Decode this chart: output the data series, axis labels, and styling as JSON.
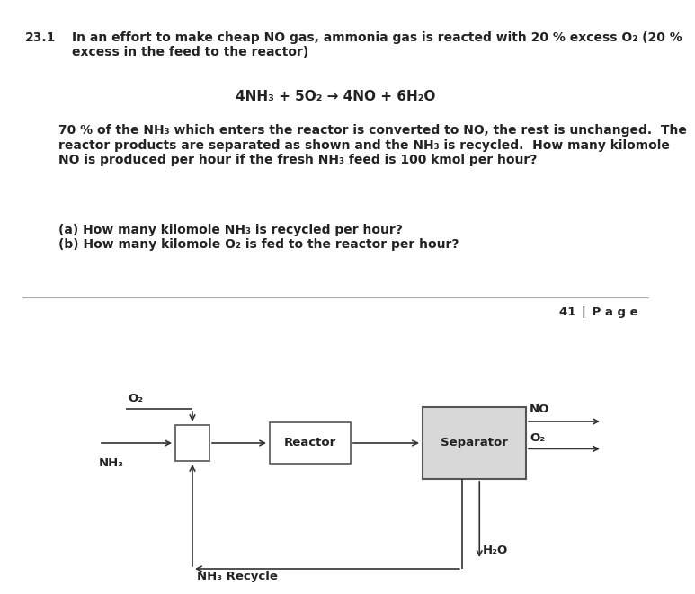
{
  "title_num": "23.1",
  "title_text": "In an effort to make cheap NO gas, ammonia gas is reacted with 20 % excess O₂ (20 %\nexcess in the feed to the reactor)",
  "equation": "4NH₃ + 5O₂ → 4NO + 6H₂O",
  "body_text": "70 % of the NH₃ which enters the reactor is converted to NO, the rest is unchanged.  The\nreactor products are separated as shown and the NH₃ is recycled.  How many kilomole\nNO is produced per hour if the fresh NH₃ feed is 100 kmol per hour?",
  "qa_text": "(a) How many kilomole NH₃ is recycled per hour?\n(b) How many kilomole O₂ is fed to the reactor per hour?",
  "page_label": "41 | P a g e",
  "label_O2_feed": "O₂",
  "label_NH3_feed": "NH₃",
  "label_NO": "NO",
  "label_O2_out": "O₂",
  "label_H2O": "H₂O",
  "label_reactor": "Reactor",
  "label_separator": "Separator",
  "label_recycle": "NH₃ Recycle",
  "separator_fill": "#d8d8d8",
  "box_edge_color": "#555555",
  "arrow_color": "#333333",
  "dark_band_color": "#555555",
  "bg_color": "#ffffff",
  "text_color": "#222222",
  "font_size_body": 10.0,
  "font_size_equation": 11.0,
  "font_size_page": 9.5,
  "font_size_diagram": 9.5,
  "font_size_title": 10.0
}
